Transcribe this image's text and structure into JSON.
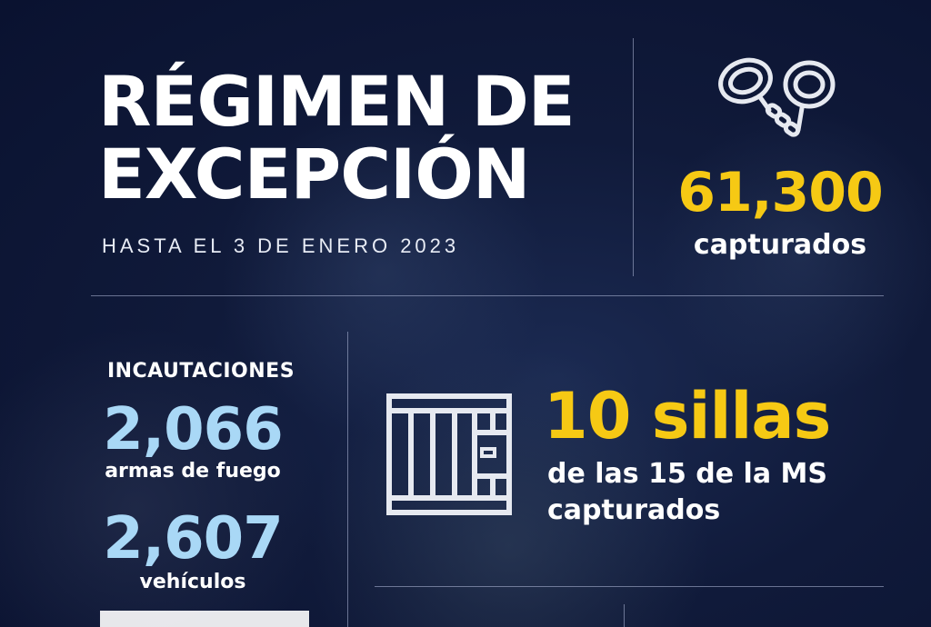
{
  "header": {
    "title_line1": "RÉGIMEN DE",
    "title_line2": "EXCEPCIÓN",
    "subtitle": "HASTA EL 3 DE ENERO 2023"
  },
  "captures": {
    "icon": "handcuffs-icon",
    "value": "61,300",
    "label": "capturados"
  },
  "seizures": {
    "title": "INCAUTACIONES",
    "items": [
      {
        "value": "2,066",
        "label": "armas de fuego"
      },
      {
        "value": "2,607",
        "label": "vehículos"
      }
    ]
  },
  "leaders": {
    "icon": "jail-cell-icon",
    "value": "10 sillas",
    "line1": "de las 15 de la MS",
    "line2": "capturados"
  },
  "colors": {
    "background": "#101a3a",
    "accent_yellow": "#f6c914",
    "accent_blue": "#a9d8f6",
    "text": "#ffffff"
  }
}
